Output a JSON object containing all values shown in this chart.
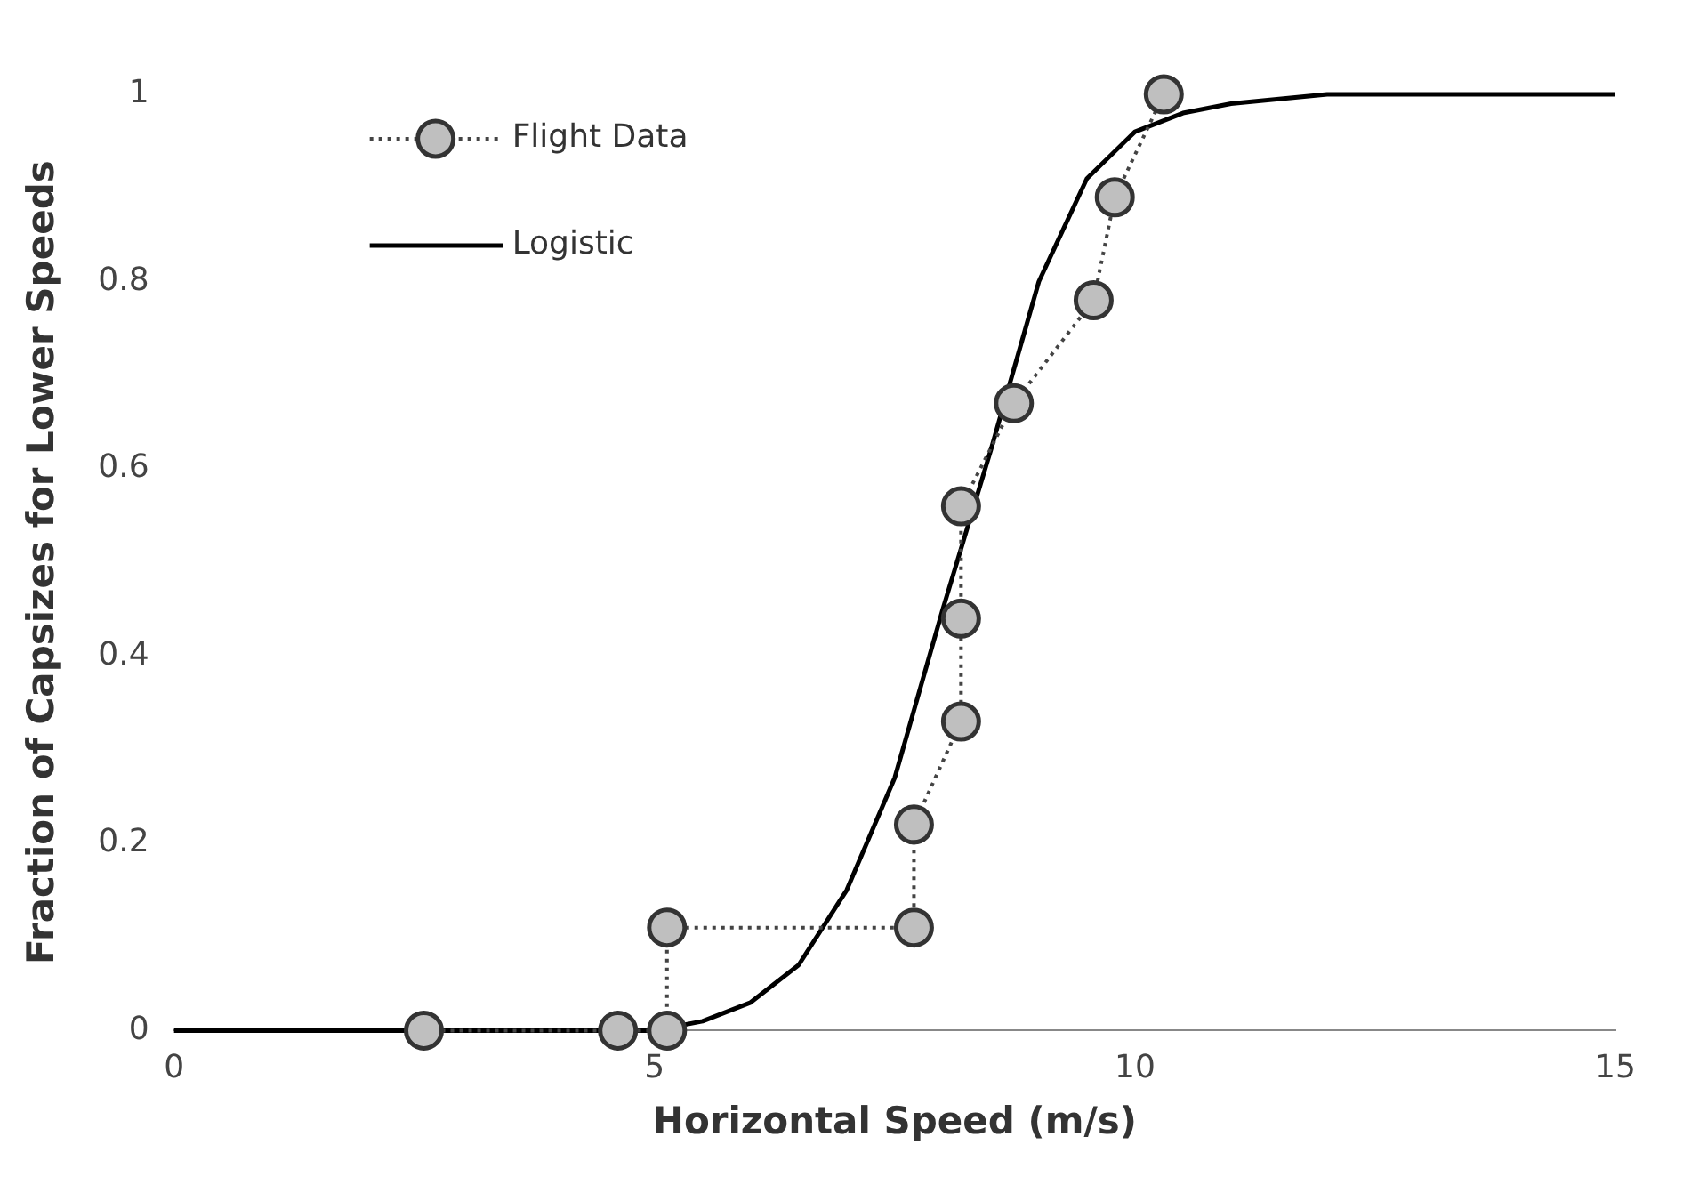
{
  "chart_data": {
    "type": "line",
    "xlabel": "Horizontal Speed (m/s)",
    "ylabel": "Fraction of Capsizes for Lower Speeds",
    "xlim": [
      0,
      15
    ],
    "xticks": [
      0,
      5,
      10,
      15
    ],
    "ylim": [
      0,
      1
    ],
    "yticks": [
      0,
      0.2,
      0.4,
      0.6,
      0.8,
      1
    ],
    "grid": false,
    "legend": "top left",
    "series": [
      {
        "name": "Flight Data",
        "color": "#bfbfbf",
        "marker": "circle",
        "line_style": "dotted",
        "x": [
          2.6,
          4.62,
          5.13,
          5.13,
          7.7,
          7.7,
          8.19,
          8.19,
          8.19,
          8.74,
          9.57,
          9.79,
          10.3
        ],
        "values": [
          0,
          0,
          0,
          0.11,
          0.11,
          0.22,
          0.33,
          0.44,
          0.56,
          0.67,
          0.78,
          0.89,
          1
        ]
      },
      {
        "name": "Logistic",
        "color": "#000000",
        "marker": "none",
        "line_style": "solid",
        "x": [
          0,
          3,
          4,
          5,
          5.5,
          6,
          6.5,
          7,
          7.5,
          8,
          8.5,
          9,
          9.5,
          10,
          10.5,
          11,
          12,
          13,
          15
        ],
        "values": [
          0,
          0,
          0,
          0,
          0.01,
          0.03,
          0.07,
          0.15,
          0.27,
          0.45,
          0.62,
          0.8,
          0.91,
          0.96,
          0.98,
          0.99,
          1,
          1,
          1
        ]
      }
    ]
  }
}
